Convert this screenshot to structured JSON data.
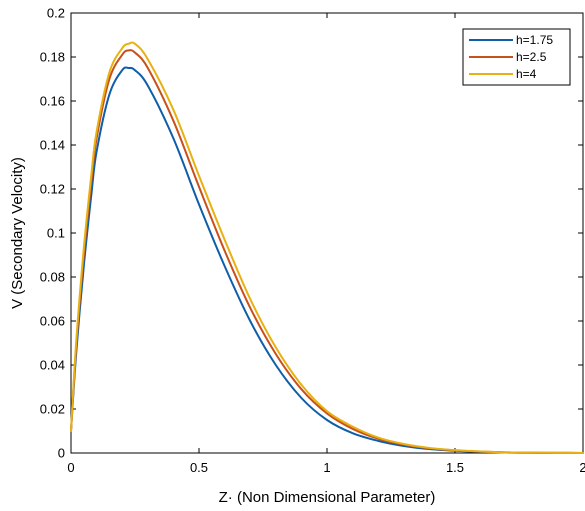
{
  "chart_data": {
    "type": "line",
    "title": "",
    "xlabel": "Z· (Non Dimensional Parameter)",
    "ylabel": "V (Secondary Velocity)",
    "xlim": [
      0,
      2
    ],
    "ylim": [
      0,
      0.2
    ],
    "xticks": [
      "0",
      "0.5",
      "1",
      "1.5",
      "2"
    ],
    "yticks": [
      "0",
      "0.02",
      "0.04",
      "0.06",
      "0.08",
      "0.1",
      "0.12",
      "0.14",
      "0.16",
      "0.18",
      "0.2"
    ],
    "grid": false,
    "legend": {
      "position": "top-right"
    },
    "x": [
      0,
      0.02,
      0.05,
      0.08,
      0.1,
      0.15,
      0.2,
      0.225,
      0.25,
      0.3,
      0.4,
      0.5,
      0.6,
      0.7,
      0.8,
      0.9,
      1.0,
      1.1,
      1.2,
      1.3,
      1.4,
      1.5,
      1.6,
      1.7,
      1.8,
      1.9,
      2.0
    ],
    "series": [
      {
        "name": "h=1.75",
        "color": "#0e5ea8",
        "values": [
          0.01,
          0.045,
          0.085,
          0.118,
          0.137,
          0.163,
          0.174,
          0.175,
          0.174,
          0.167,
          0.143,
          0.113,
          0.085,
          0.06,
          0.04,
          0.025,
          0.015,
          0.009,
          0.0055,
          0.0032,
          0.0018,
          0.001,
          0.0005,
          0.0002,
          0.0001,
          5e-05,
          0.0
        ]
      },
      {
        "name": "h=2.5",
        "color": "#c8501a",
        "values": [
          0.01,
          0.048,
          0.09,
          0.124,
          0.143,
          0.17,
          0.181,
          0.183,
          0.182,
          0.175,
          0.151,
          0.121,
          0.092,
          0.066,
          0.045,
          0.029,
          0.018,
          0.011,
          0.0065,
          0.0038,
          0.0021,
          0.0012,
          0.0006,
          0.0003,
          0.0001,
          5e-05,
          0.0
        ]
      },
      {
        "name": "h=4",
        "color": "#e8b010",
        "values": [
          0.01,
          0.05,
          0.093,
          0.127,
          0.146,
          0.173,
          0.184,
          0.186,
          0.186,
          0.179,
          0.156,
          0.126,
          0.097,
          0.07,
          0.048,
          0.031,
          0.019,
          0.012,
          0.007,
          0.0041,
          0.0023,
          0.0013,
          0.0007,
          0.0003,
          0.00015,
          5e-05,
          0.0
        ]
      }
    ]
  }
}
